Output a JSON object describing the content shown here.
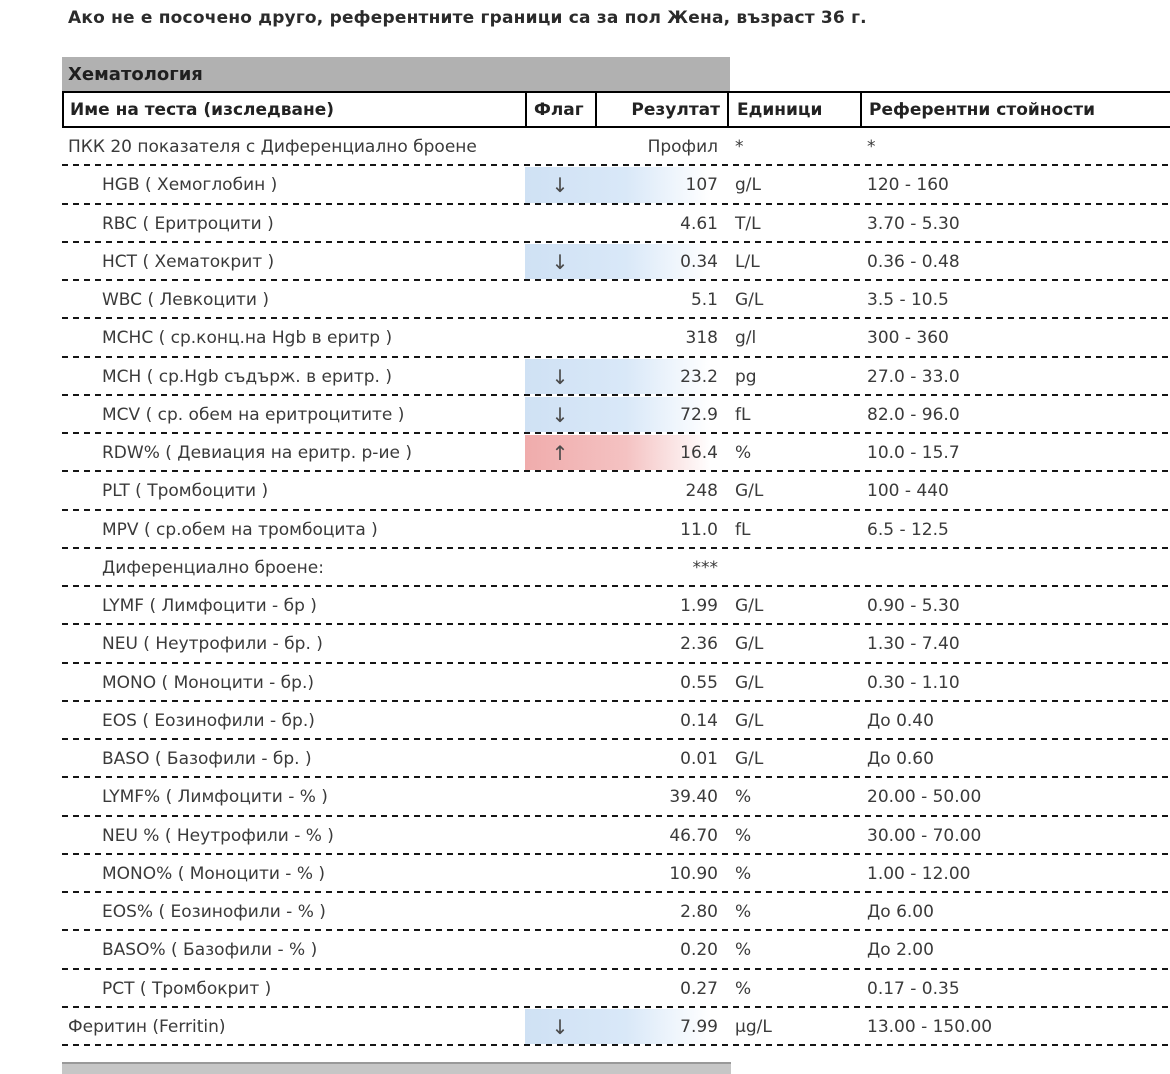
{
  "page": {
    "note": "Ако не е посочено друго, референтните граници са за пол Жена, възраст 36 г."
  },
  "section": {
    "title": "Хематология"
  },
  "table": {
    "columns": {
      "name": "Име на теста (изследване)",
      "flag": "Флаг",
      "result": "Резултат",
      "units": "Единици",
      "reference": "Референтни стойности"
    },
    "rows": [
      {
        "name": "ПКК 20 показателя с Диференциално броене",
        "indent": false,
        "flag": "",
        "result": "Профил",
        "units": "*",
        "reference": "*",
        "highlight": "none"
      },
      {
        "name": "HGB ( Хемоглобин )",
        "indent": true,
        "flag": "↓",
        "result": "107",
        "units": "g/L",
        "reference": "120 - 160",
        "highlight": "low"
      },
      {
        "name": "RBC ( Еритроцити )",
        "indent": true,
        "flag": "",
        "result": "4.61",
        "units": "T/L",
        "reference": "3.70 - 5.30",
        "highlight": "none"
      },
      {
        "name": "HCT ( Хематокрит )",
        "indent": true,
        "flag": "↓",
        "result": "0.34",
        "units": "L/L",
        "reference": "0.36 - 0.48",
        "highlight": "low"
      },
      {
        "name": "WBC ( Левкоцити )",
        "indent": true,
        "flag": "",
        "result": "5.1",
        "units": "G/L",
        "reference": "3.5 - 10.5",
        "highlight": "none"
      },
      {
        "name": "MCHC ( ср.конц.на Hgb в еритр )",
        "indent": true,
        "flag": "",
        "result": "318",
        "units": "g/l",
        "reference": "300 - 360",
        "highlight": "none"
      },
      {
        "name": "MCH ( ср.Hgb съдърж. в еритр. )",
        "indent": true,
        "flag": "↓",
        "result": "23.2",
        "units": "pg",
        "reference": "27.0 - 33.0",
        "highlight": "low"
      },
      {
        "name": "MCV ( ср. обем на еритроцитите )",
        "indent": true,
        "flag": "↓",
        "result": "72.9",
        "units": "fL",
        "reference": "82.0 - 96.0",
        "highlight": "low"
      },
      {
        "name": "RDW% ( Девиация на еритр. р-ие )",
        "indent": true,
        "flag": "↑",
        "result": "16.4",
        "units": "%",
        "reference": "10.0 - 15.7",
        "highlight": "high"
      },
      {
        "name": "PLT ( Тромбоцити )",
        "indent": true,
        "flag": "",
        "result": "248",
        "units": "G/L",
        "reference": "100 - 440",
        "highlight": "none"
      },
      {
        "name": "MPV ( ср.обем на тромбоцита )",
        "indent": true,
        "flag": "",
        "result": "11.0",
        "units": "fL",
        "reference": "6.5 - 12.5",
        "highlight": "none"
      },
      {
        "name": "Диференциално броене:",
        "indent": true,
        "flag": "",
        "result": "***",
        "units": "",
        "reference": "",
        "highlight": "none"
      },
      {
        "name": "LYMF ( Лимфоцити - бр )",
        "indent": true,
        "flag": "",
        "result": "1.99",
        "units": "G/L",
        "reference": "0.90 - 5.30",
        "highlight": "none"
      },
      {
        "name": "NEU ( Неутрофили - бр. )",
        "indent": true,
        "flag": "",
        "result": "2.36",
        "units": "G/L",
        "reference": "1.30 - 7.40",
        "highlight": "none"
      },
      {
        "name": "MONO ( Моноцити - бр.)",
        "indent": true,
        "flag": "",
        "result": "0.55",
        "units": "G/L",
        "reference": "0.30 - 1.10",
        "highlight": "none"
      },
      {
        "name": "EOS ( Еозинофили - бр.)",
        "indent": true,
        "flag": "",
        "result": "0.14",
        "units": "G/L",
        "reference": "До 0.40",
        "highlight": "none"
      },
      {
        "name": "BASO ( Базофили - бр. )",
        "indent": true,
        "flag": "",
        "result": "0.01",
        "units": "G/L",
        "reference": "До 0.60",
        "highlight": "none"
      },
      {
        "name": "LYMF% ( Лимфоцити - % )",
        "indent": true,
        "flag": "",
        "result": "39.40",
        "units": "%",
        "reference": "20.00 - 50.00",
        "highlight": "none"
      },
      {
        "name": "NEU % ( Неутрофили - % )",
        "indent": true,
        "flag": "",
        "result": "46.70",
        "units": "%",
        "reference": "30.00 - 70.00",
        "highlight": "none"
      },
      {
        "name": "MONO% ( Моноцити - % )",
        "indent": true,
        "flag": "",
        "result": "10.90",
        "units": "%",
        "reference": "1.00 - 12.00",
        "highlight": "none"
      },
      {
        "name": "EOS% ( Еозинофили - % )",
        "indent": true,
        "flag": "",
        "result": "2.80",
        "units": "%",
        "reference": "До 6.00",
        "highlight": "none"
      },
      {
        "name": "BASO% ( Базофили - % )",
        "indent": true,
        "flag": "",
        "result": "0.20",
        "units": "%",
        "reference": "До 2.00",
        "highlight": "none"
      },
      {
        "name": "PCT ( Тромбокрит )",
        "indent": true,
        "flag": "",
        "result": "0.27",
        "units": "%",
        "reference": "0.17 - 0.35",
        "highlight": "none"
      },
      {
        "name": "Феритин (Ferritin)",
        "indent": false,
        "flag": "↓",
        "result": "7.99",
        "units": "µg/L",
        "reference": "13.00 - 150.00",
        "highlight": "low"
      }
    ]
  },
  "colors": {
    "section_bg": "#b1b1b1",
    "low_flag_highlight": "#cfe1f4",
    "high_flag_highlight": "#f0acac"
  }
}
